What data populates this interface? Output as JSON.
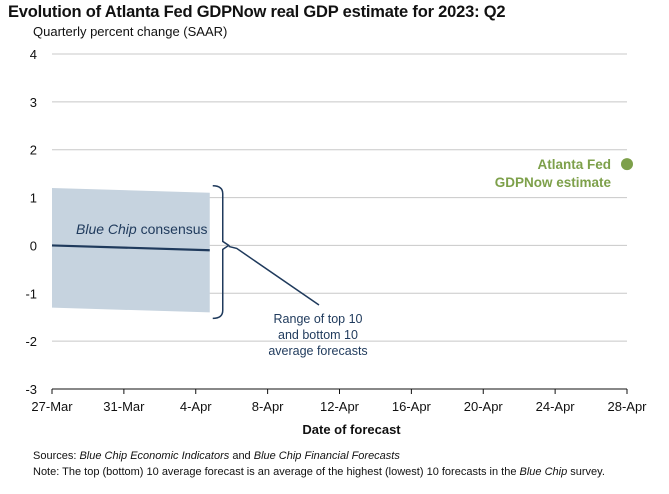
{
  "chart_data": {
    "type": "line",
    "title": "Evolution of Atlanta Fed GDPNow real GDP estimate for 2023: Q2",
    "subtitle": "Quarterly percent change (SAAR)",
    "xlabel": "Date of forecast",
    "ylabel": "",
    "x_ticks": [
      "27-Mar",
      "31-Mar",
      "4-Apr",
      "8-Apr",
      "12-Apr",
      "16-Apr",
      "20-Apr",
      "24-Apr",
      "28-Apr"
    ],
    "xlim": [
      "27-Mar",
      "28-Apr"
    ],
    "ylim": [
      -3,
      4
    ],
    "y_ticks": [
      -3,
      -2,
      -1,
      0,
      1,
      2,
      3,
      4
    ],
    "y_tick_labels": [
      "-3",
      "-2",
      "-1",
      "0",
      "1",
      "2",
      "3",
      "4"
    ],
    "grid": "horizontal",
    "series": [
      {
        "name": "Blue Chip consensus",
        "kind": "line",
        "color": "#1f3a5c",
        "x": [
          "27-Mar",
          "4-Apr"
        ],
        "y": [
          0.0,
          -0.1
        ]
      },
      {
        "name": "Range of top 10 and bottom 10 average forecasts",
        "kind": "band",
        "color": "#c6d3df",
        "x": [
          "27-Mar",
          "4-Apr"
        ],
        "y_upper": [
          1.2,
          1.1
        ],
        "y_lower": [
          -1.3,
          -1.4
        ]
      },
      {
        "name": "Atlanta Fed GDPNow estimate",
        "kind": "point",
        "color": "#7da04a",
        "x": [
          "28-Apr"
        ],
        "y": [
          1.7
        ]
      }
    ],
    "annotations": {
      "blue_chip_italic": "Blue Chip",
      "blue_chip_rest": " consensus",
      "range_line1": "Range of top 10",
      "range_line2": "and bottom 10",
      "range_line3": "average forecasts",
      "gdpnow_line1": "Atlanta Fed",
      "gdpnow_line2": "GDPNow estimate"
    },
    "colors": {
      "band": "#c6d3df",
      "consensus_line": "#1f3a5c",
      "annotation_text": "#1f3a5c",
      "gdpnow": "#7da04a",
      "grid": "#c8c8c8"
    }
  },
  "footer": {
    "sources_label": "Sources: ",
    "sources_italic_1": "Blue Chip Economic Indicators",
    "sources_mid": " and ",
    "sources_italic_2": "Blue Chip Financial Forecasts",
    "note_label": "Note: ",
    "note_text": "The top (bottom) 10 average forecast is an average of the highest (lowest) 10 forecasts in the ",
    "note_italic": "Blue Chip",
    "note_end": " survey."
  }
}
